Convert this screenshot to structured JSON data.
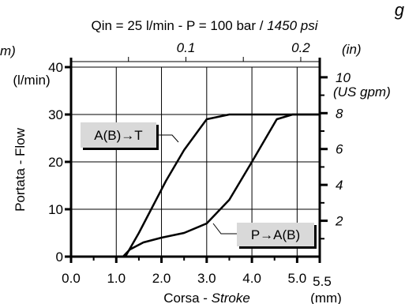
{
  "chart_data": {
    "type": "line",
    "title_fragment": "g",
    "subtitle": {
      "main": "Qin = 25 l/min - P = 100 bar / ",
      "italic": "1450 psi"
    },
    "xlabel": {
      "main": "Corsa - ",
      "italic": "Stroke"
    },
    "x_unit": "(mm)",
    "ylabel": "Portata - Flow",
    "y_unit": "(l/min)",
    "x_ticks": [
      {
        "value": 0,
        "label": "0.0"
      },
      {
        "value": 1,
        "label": "1.0"
      },
      {
        "value": 2,
        "label": "2.0"
      },
      {
        "value": 3,
        "label": "3.0"
      },
      {
        "value": 4,
        "label": "4.0"
      },
      {
        "value": 5,
        "label": "5.0"
      },
      {
        "value": 5.5,
        "label": "5.5"
      }
    ],
    "y_ticks": [
      {
        "value": 0,
        "label": "0"
      },
      {
        "value": 10,
        "label": "10"
      },
      {
        "value": 20,
        "label": "20"
      },
      {
        "value": 30,
        "label": "30"
      },
      {
        "value": 40,
        "label": "40"
      }
    ],
    "top_axis": {
      "unit_label": "(in)",
      "left_cut_label": "m)",
      "ticks": [
        {
          "value": 0.1,
          "label": "0.1"
        },
        {
          "value": 0.2,
          "label": "0.2"
        }
      ]
    },
    "right_axis": {
      "unit_label": "(US gpm)",
      "ticks": [
        {
          "value": 2,
          "label": "2"
        },
        {
          "value": 4,
          "label": "4"
        },
        {
          "value": 6,
          "label": "6"
        },
        {
          "value": 8,
          "label": "8"
        },
        {
          "value": 10,
          "label": "10"
        }
      ]
    },
    "xlim": [
      0,
      5.5
    ],
    "ylim": [
      0,
      40
    ],
    "grid": true,
    "series": [
      {
        "name": "A(B)→T",
        "x": [
          0,
          1.2,
          1.5,
          1.8,
          2.1,
          2.5,
          3.0,
          3.5,
          5.0,
          5.5
        ],
        "y": [
          0,
          0,
          5,
          10.5,
          16,
          22.5,
          29,
          30,
          30,
          30
        ]
      },
      {
        "name": "P→A(B)",
        "x": [
          1.15,
          1.3,
          1.6,
          2.0,
          2.5,
          3.0,
          3.5,
          4.0,
          4.55,
          4.9,
          5.5
        ],
        "y": [
          0,
          1.5,
          3,
          4,
          5,
          7,
          12,
          20,
          29,
          30,
          30
        ]
      }
    ]
  }
}
